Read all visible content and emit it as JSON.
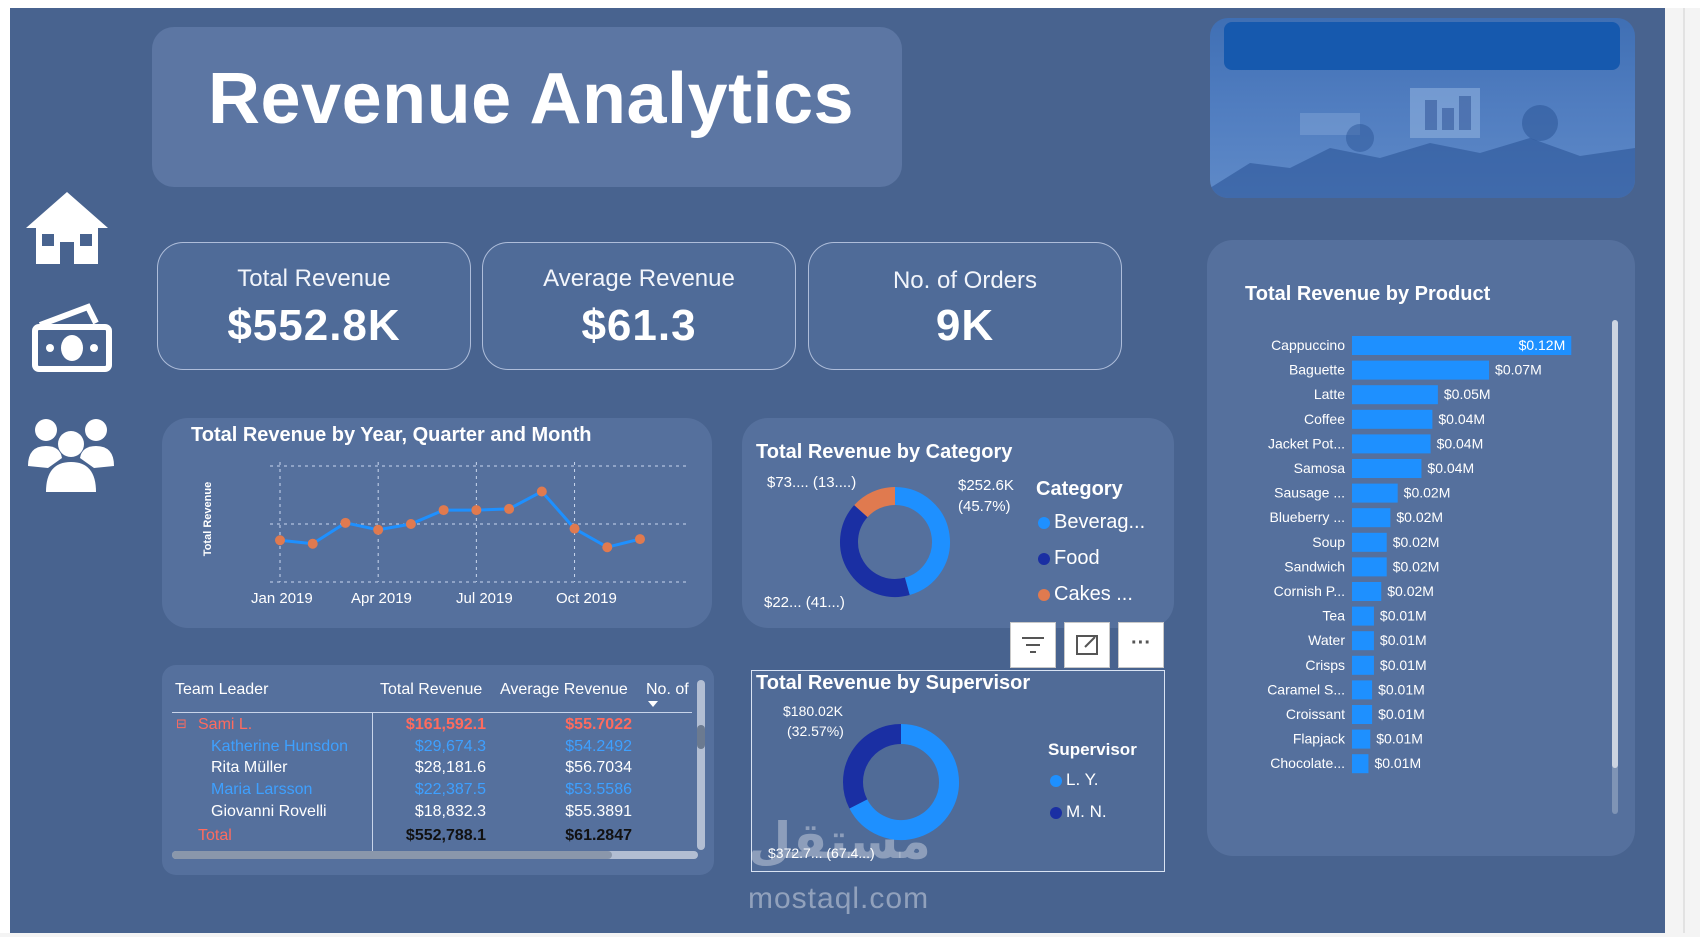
{
  "header": {
    "title": "Revenue Analytics"
  },
  "nav": {
    "items": [
      {
        "icon": "home-icon"
      },
      {
        "icon": "money-icon"
      },
      {
        "icon": "people-icon"
      }
    ]
  },
  "kpis": [
    {
      "label": "Total Revenue",
      "value": "$552.8K"
    },
    {
      "label": "Average Revenue",
      "value": "$61.3"
    },
    {
      "label": "No. of Orders",
      "value": "9K"
    }
  ],
  "line_chart": {
    "title": "Total Revenue by Year, Quarter and Month",
    "ylabel": "Total Revenue",
    "x_ticks": [
      "Jan 2019",
      "Apr 2019",
      "Jul 2019",
      "Oct 2019"
    ]
  },
  "category_chart": {
    "title": "Total Revenue by Category",
    "legend_title": "Category",
    "legend": [
      "Beverag...",
      "Food",
      "Cakes ..."
    ],
    "labels": {
      "top_left": "$73.... (13....)",
      "top_right_1": "$252.6K",
      "top_right_2": "(45.7%)",
      "bottom_left": "$22... (41...)"
    }
  },
  "supervisor_chart": {
    "title": "Total Revenue by Supervisor",
    "legend_title": "Supervisor",
    "legend": [
      "L. Y.",
      "M. N."
    ],
    "labels": {
      "top_1": "$180.02K",
      "top_2": "(32.57%)",
      "bottom": "$372.7... (67.4...)"
    }
  },
  "product_chart": {
    "title": "Total Revenue by Product"
  },
  "visual_toolbar": {
    "icons": [
      "filter-icon",
      "focus-mode-icon",
      "more-options-icon"
    ],
    "more_label": "···"
  },
  "team_table": {
    "columns": [
      "Team Leader",
      "Total Revenue",
      "Average Revenue",
      "No. of"
    ],
    "rows": [
      {
        "name": "Sami L.",
        "total": "$161,592.1",
        "avg": "$55.7022",
        "style": "leader"
      },
      {
        "name": "Katherine Hunsdon",
        "total": "$29,674.3",
        "avg": "$54.2492",
        "style": "link"
      },
      {
        "name": "Rita Müller",
        "total": "$28,181.6",
        "avg": "$56.7034",
        "style": "normal"
      },
      {
        "name": "Maria Larsson",
        "total": "$22,387.5",
        "avg": "$53.5586",
        "style": "link"
      },
      {
        "name": "Giovanni Rovelli",
        "total": "$18,832.3",
        "avg": "$55.3891",
        "style": "normal"
      }
    ],
    "total_row": {
      "name": "Total",
      "total": "$552,788.1",
      "avg": "$61.2847"
    },
    "expand_symbol": "⊟"
  },
  "watermark": {
    "arabic": "مستقل",
    "latin": "mostaql.com"
  },
  "colors": {
    "background": "#48638f",
    "accent_blue": "#1e90ff",
    "dark_blue": "#1a2fa3",
    "orange": "#e07a4f",
    "red_text": "#ff6b5e"
  },
  "chart_data": [
    {
      "type": "line",
      "title": "Total Revenue by Year, Quarter and Month",
      "xlabel": "",
      "ylabel": "Total Revenue",
      "x": [
        "Jan 2019",
        "Feb 2019",
        "Mar 2019",
        "Apr 2019",
        "May 2019",
        "Jun 2019",
        "Jul 2019",
        "Aug 2019",
        "Sep 2019",
        "Oct 2019",
        "Nov 2019",
        "Dec 2019"
      ],
      "x_ticks": [
        "Jan 2019",
        "Apr 2019",
        "Jul 2019",
        "Oct 2019"
      ],
      "series": [
        {
          "values": [
            36,
            33,
            51,
            45,
            50,
            62,
            62,
            63,
            78,
            46,
            30,
            37
          ]
        }
      ],
      "ylim": [
        0,
        100
      ],
      "grid": true
    },
    {
      "type": "pie",
      "title": "Total Revenue by Category",
      "legend_title": "Category",
      "categories": [
        "Beverag...",
        "Food",
        "Cakes ..."
      ],
      "values": [
        45.7,
        41.0,
        13.3
      ]
    },
    {
      "type": "pie",
      "title": "Total Revenue by Supervisor",
      "legend_title": "Supervisor",
      "categories": [
        "L. Y.",
        "M. N."
      ],
      "values": [
        67.43,
        32.57
      ]
    },
    {
      "type": "bar",
      "title": "Total Revenue by Product",
      "orientation": "horizontal",
      "categories": [
        "Cappuccino",
        "Baguette",
        "Latte",
        "Coffee",
        "Jacket Pot...",
        "Samosa",
        "Sausage ...",
        "Blueberry ...",
        "Soup",
        "Sandwich",
        "Cornish P...",
        "Tea",
        "Water",
        "Crisps",
        "Caramel S...",
        "Croissant",
        "Flapjack",
        "Chocolate..."
      ],
      "values": [
        0.12,
        0.075,
        0.047,
        0.044,
        0.043,
        0.038,
        0.025,
        0.021,
        0.019,
        0.019,
        0.016,
        0.012,
        0.012,
        0.012,
        0.011,
        0.011,
        0.01,
        0.009
      ],
      "value_labels": [
        "$0.12M",
        "$0.07M",
        "$0.05M",
        "$0.04M",
        "$0.04M",
        "$0.04M",
        "$0.02M",
        "$0.02M",
        "$0.02M",
        "$0.02M",
        "$0.02M",
        "$0.01M",
        "$0.01M",
        "$0.01M",
        "$0.01M",
        "$0.01M",
        "$0.01M",
        "$0.01M"
      ],
      "xlim": [
        0,
        0.14
      ]
    }
  ]
}
